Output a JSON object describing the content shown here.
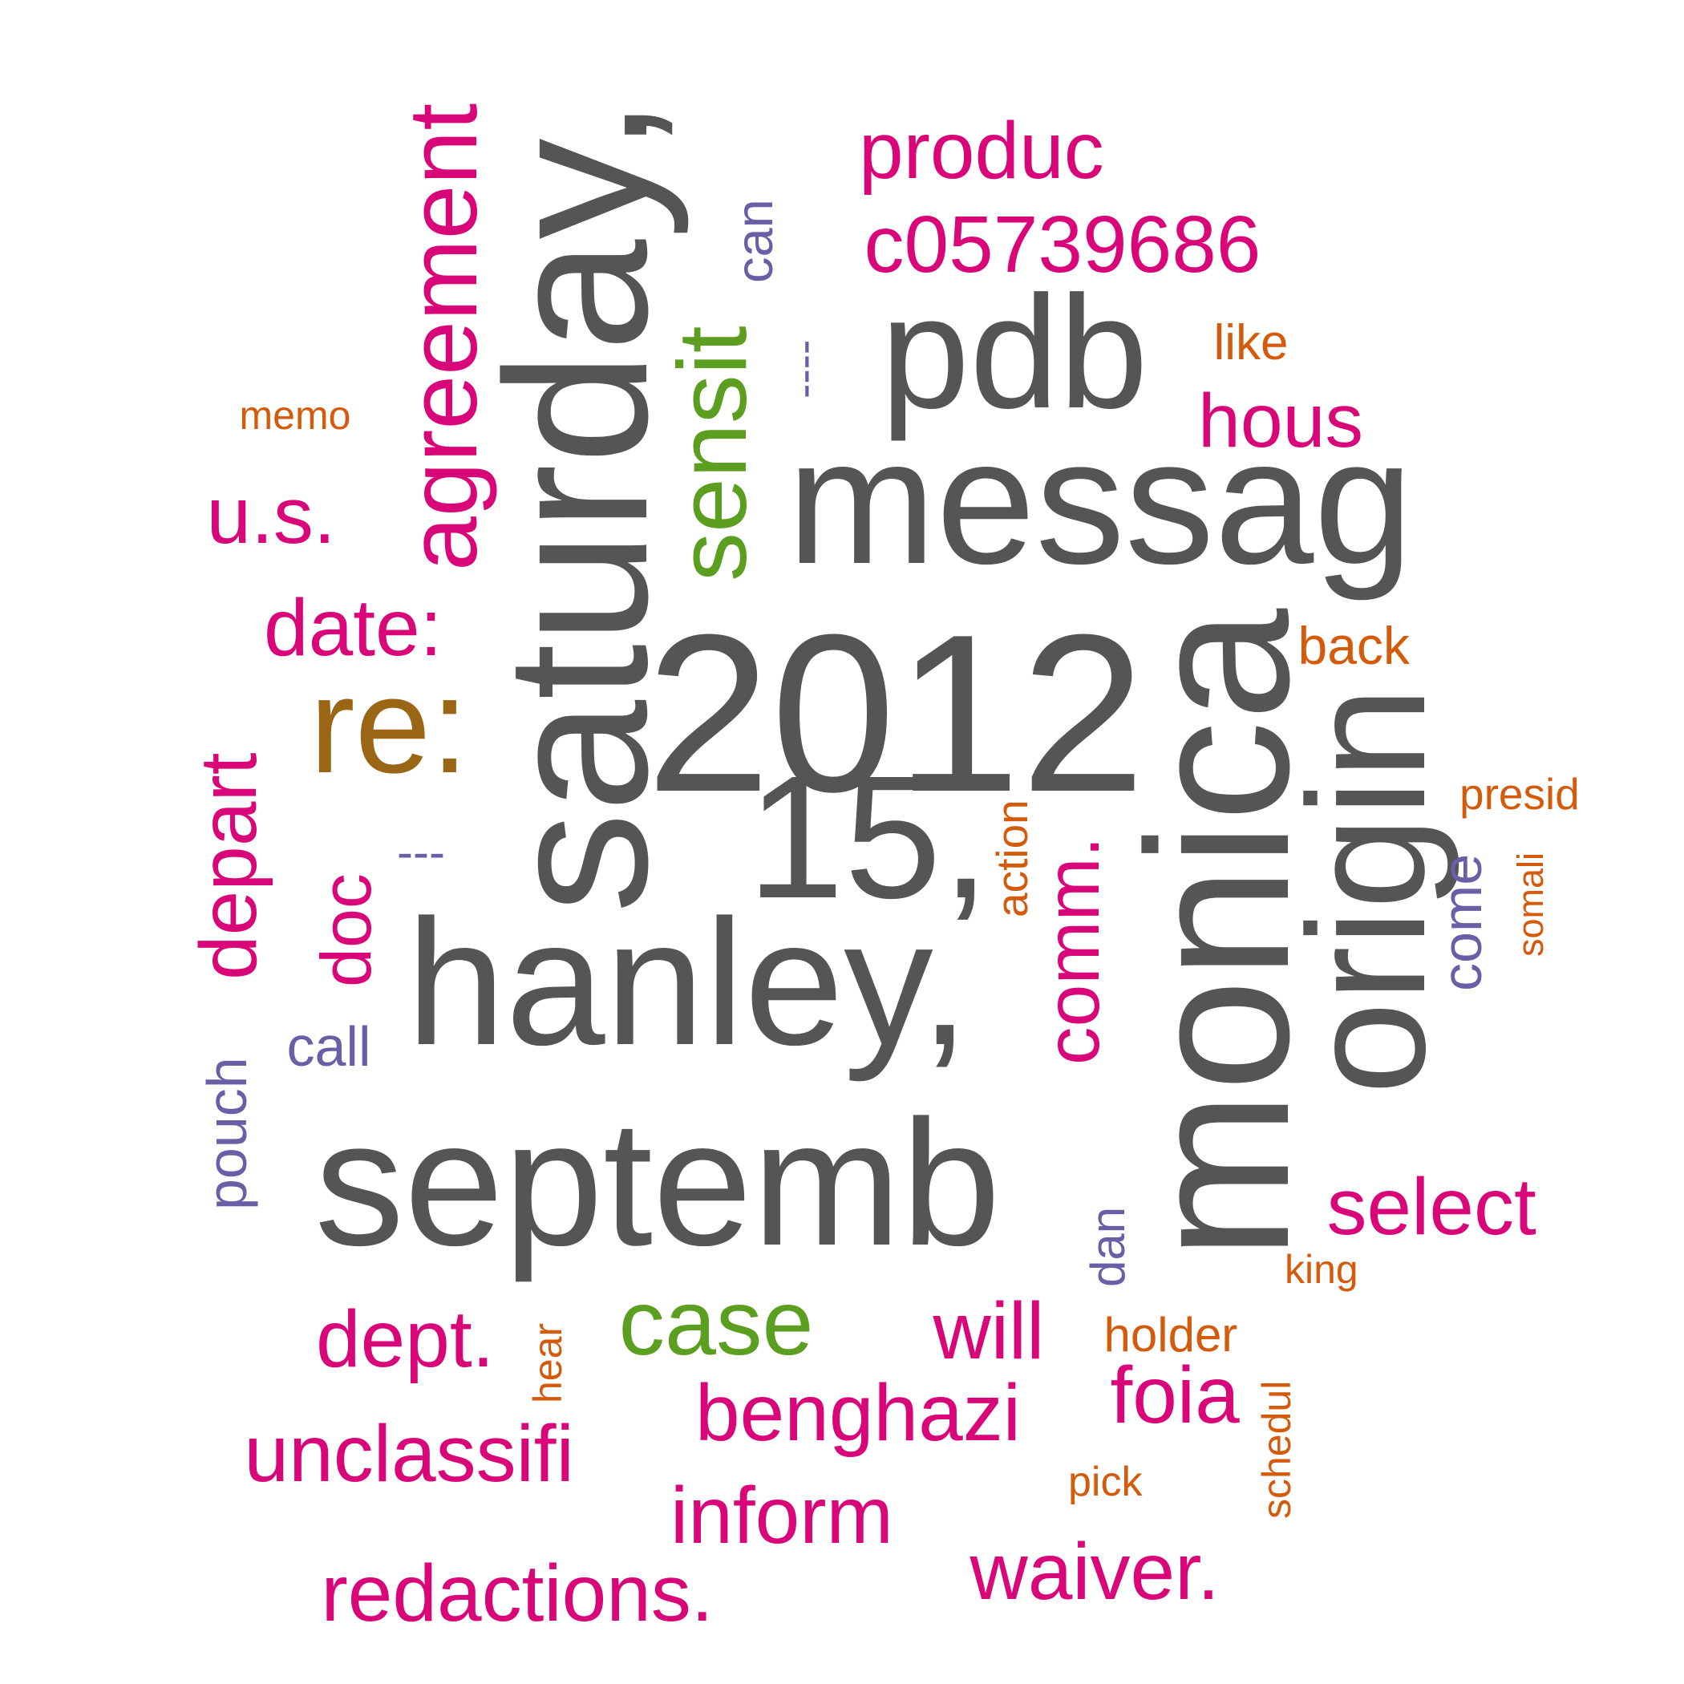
{
  "colors": {
    "gray": "#555555",
    "magenta": "#d9067a",
    "green": "#5c9e1f",
    "brown": "#9b6516",
    "orange": "#d45a0c",
    "purple": "#6a5fa6"
  },
  "words": [
    {
      "text": "2012",
      "color": "gray"
    },
    {
      "text": "15,",
      "color": "gray"
    },
    {
      "text": "hanley,",
      "color": "gray"
    },
    {
      "text": "septemb",
      "color": "gray"
    },
    {
      "text": "messag",
      "color": "gray"
    },
    {
      "text": "pdb",
      "color": "gray"
    },
    {
      "text": "saturday,",
      "color": "gray"
    },
    {
      "text": "monica",
      "color": "gray"
    },
    {
      "text": "origin",
      "color": "gray"
    },
    {
      "text": "re:",
      "color": "brown"
    },
    {
      "text": "sensit",
      "color": "green"
    },
    {
      "text": "case",
      "color": "green"
    },
    {
      "text": "agreement",
      "color": "magenta"
    },
    {
      "text": "produc",
      "color": "magenta"
    },
    {
      "text": "c05739686",
      "color": "magenta"
    },
    {
      "text": "hous",
      "color": "magenta"
    },
    {
      "text": "u.s.",
      "color": "magenta"
    },
    {
      "text": "date:",
      "color": "magenta"
    },
    {
      "text": "depart",
      "color": "magenta"
    },
    {
      "text": "doc",
      "color": "magenta"
    },
    {
      "text": "comm.",
      "color": "magenta"
    },
    {
      "text": "select",
      "color": "magenta"
    },
    {
      "text": "dept.",
      "color": "magenta"
    },
    {
      "text": "will",
      "color": "magenta"
    },
    {
      "text": "benghazi",
      "color": "magenta"
    },
    {
      "text": "foia",
      "color": "magenta"
    },
    {
      "text": "unclassifi",
      "color": "magenta"
    },
    {
      "text": "inform",
      "color": "magenta"
    },
    {
      "text": "redactions.",
      "color": "magenta"
    },
    {
      "text": "waiver.",
      "color": "magenta"
    },
    {
      "text": "memo",
      "color": "orange"
    },
    {
      "text": "like",
      "color": "orange"
    },
    {
      "text": "back",
      "color": "orange"
    },
    {
      "text": "presid",
      "color": "orange"
    },
    {
      "text": "action",
      "color": "orange"
    },
    {
      "text": "somali",
      "color": "orange"
    },
    {
      "text": "king",
      "color": "orange"
    },
    {
      "text": "holder",
      "color": "orange"
    },
    {
      "text": "hear",
      "color": "orange"
    },
    {
      "text": "schedul",
      "color": "orange"
    },
    {
      "text": "pick",
      "color": "orange"
    },
    {
      "text": "can",
      "color": "purple"
    },
    {
      "text": "----",
      "color": "purple"
    },
    {
      "text": "---",
      "color": "purple"
    },
    {
      "text": "call",
      "color": "purple"
    },
    {
      "text": "pouch",
      "color": "purple"
    },
    {
      "text": "come",
      "color": "purple"
    },
    {
      "text": "dan",
      "color": "purple"
    }
  ]
}
